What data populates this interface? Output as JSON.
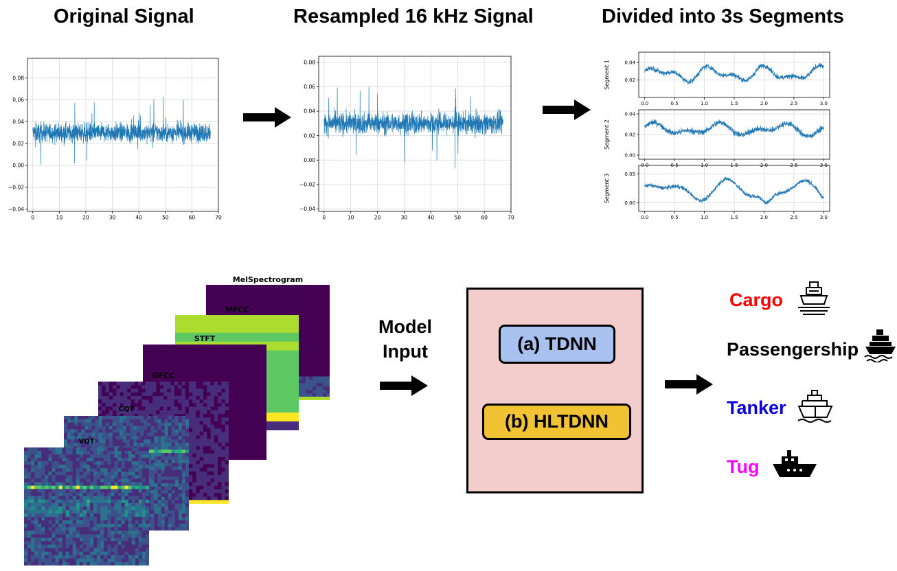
{
  "titles": {
    "original": "Original Signal",
    "resampled": "Resampled 16 kHz Signal",
    "segments": "Divided into 3s Segments"
  },
  "chart_data": [
    {
      "type": "line",
      "x_ticks": [
        0,
        10,
        20,
        30,
        40,
        50,
        60,
        70
      ],
      "y_ticks": [
        -0.04,
        -0.02,
        0.0,
        0.02,
        0.04,
        0.06,
        0.08
      ],
      "y_tick_labels": [
        "−0.04",
        "−0.02",
        "0.00",
        "0.02",
        "0.04",
        "0.06",
        "0.08"
      ],
      "xlim": [
        -2,
        70
      ],
      "ylim": [
        -0.042,
        0.098
      ],
      "signal_range": [
        0,
        67
      ],
      "mean": 0.03,
      "color": "#1f77b4",
      "grid": true
    },
    {
      "type": "line",
      "x_ticks": [
        0,
        10,
        20,
        30,
        40,
        50,
        60,
        70
      ],
      "y_ticks": [
        -0.04,
        -0.02,
        0.0,
        0.02,
        0.04,
        0.06,
        0.08
      ],
      "y_tick_labels": [
        "−0.04",
        "−0.02",
        "0.00",
        "0.02",
        "0.04",
        "0.06",
        "0.08"
      ],
      "xlim": [
        -2,
        70
      ],
      "ylim": [
        -0.042,
        0.085
      ],
      "signal_range": [
        0,
        67
      ],
      "mean": 0.03,
      "color": "#1f77b4",
      "grid": true
    },
    {
      "type": "line",
      "ylabel": "Segment 1",
      "x_ticks": [
        0.0,
        0.5,
        1.0,
        1.5,
        2.0,
        2.5,
        3.0
      ],
      "x_tick_labels": [
        "0.0",
        "0.5",
        "1.0",
        "1.5",
        "2.0",
        "2.5",
        "3.0"
      ],
      "y_ticks": [
        0.02,
        0.04
      ],
      "y_tick_labels": [
        "0.02",
        "0.04"
      ],
      "xlim": [
        -0.1,
        3.1
      ],
      "ylim": [
        0.0,
        0.052
      ],
      "color": "#1f77b4",
      "grid": true
    },
    {
      "type": "line",
      "ylabel": "Segment 2",
      "x_ticks": [
        0.0,
        0.5,
        1.0,
        1.5,
        2.0,
        2.5,
        3.0
      ],
      "x_tick_labels": [
        "0.0",
        "0.5",
        "1.0",
        "1.5",
        "2.0",
        "2.5",
        "3.0"
      ],
      "y_ticks": [
        0.0,
        0.02,
        0.04
      ],
      "y_tick_labels": [
        "0.00",
        "0.02",
        "0.04"
      ],
      "xlim": [
        -0.1,
        3.1
      ],
      "ylim": [
        -0.004,
        0.044
      ],
      "color": "#1f77b4",
      "grid": true
    },
    {
      "type": "line",
      "ylabel": "Segment 3",
      "x_ticks": [
        0.0,
        0.5,
        1.0,
        1.5,
        2.0,
        2.5,
        3.0
      ],
      "x_tick_labels": [
        "0.0",
        "0.5",
        "1.0",
        "1.5",
        "2.0",
        "2.5",
        "3.0"
      ],
      "y_ticks": [
        0.0,
        0.05
      ],
      "y_tick_labels": [
        "0.00",
        "0.05"
      ],
      "xlim": [
        -0.1,
        3.1
      ],
      "ylim": [
        -0.015,
        0.065
      ],
      "color": "#1f77b4",
      "grid": true
    }
  ],
  "spectrograms": [
    {
      "title": "MelSpectrogram",
      "colormap": "viridis"
    },
    {
      "title": "MFCC",
      "colormap": "viridis"
    },
    {
      "title": "STFT",
      "colormap": "viridis"
    },
    {
      "title": "GFCC",
      "colormap": "viridis"
    },
    {
      "title": "CQT",
      "colormap": "viridis"
    },
    {
      "title": "VQT",
      "colormap": "viridis"
    }
  ],
  "model_input": {
    "line1": "Model",
    "line2": "Input"
  },
  "models": {
    "tdnn": "(a) TDNN",
    "hltdnn": "(b) HLTDNN"
  },
  "colors": {
    "signal": "#1f77b4",
    "model_box_fill": "#f3cccc",
    "tdnn_fill": "#a8c1ef",
    "hltdnn_fill": "#f1c232",
    "cargo": "#ff0000",
    "passengership": "#000000",
    "tanker": "#0a00e0",
    "tug": "#ff00ff"
  },
  "classes": [
    {
      "name": "Cargo",
      "icon": "cargo-ship-icon"
    },
    {
      "name": "Passengership",
      "icon": "passenger-ship-icon"
    },
    {
      "name": "Tanker",
      "icon": "tanker-ship-icon"
    },
    {
      "name": "Tug",
      "icon": "tug-boat-icon"
    }
  ]
}
